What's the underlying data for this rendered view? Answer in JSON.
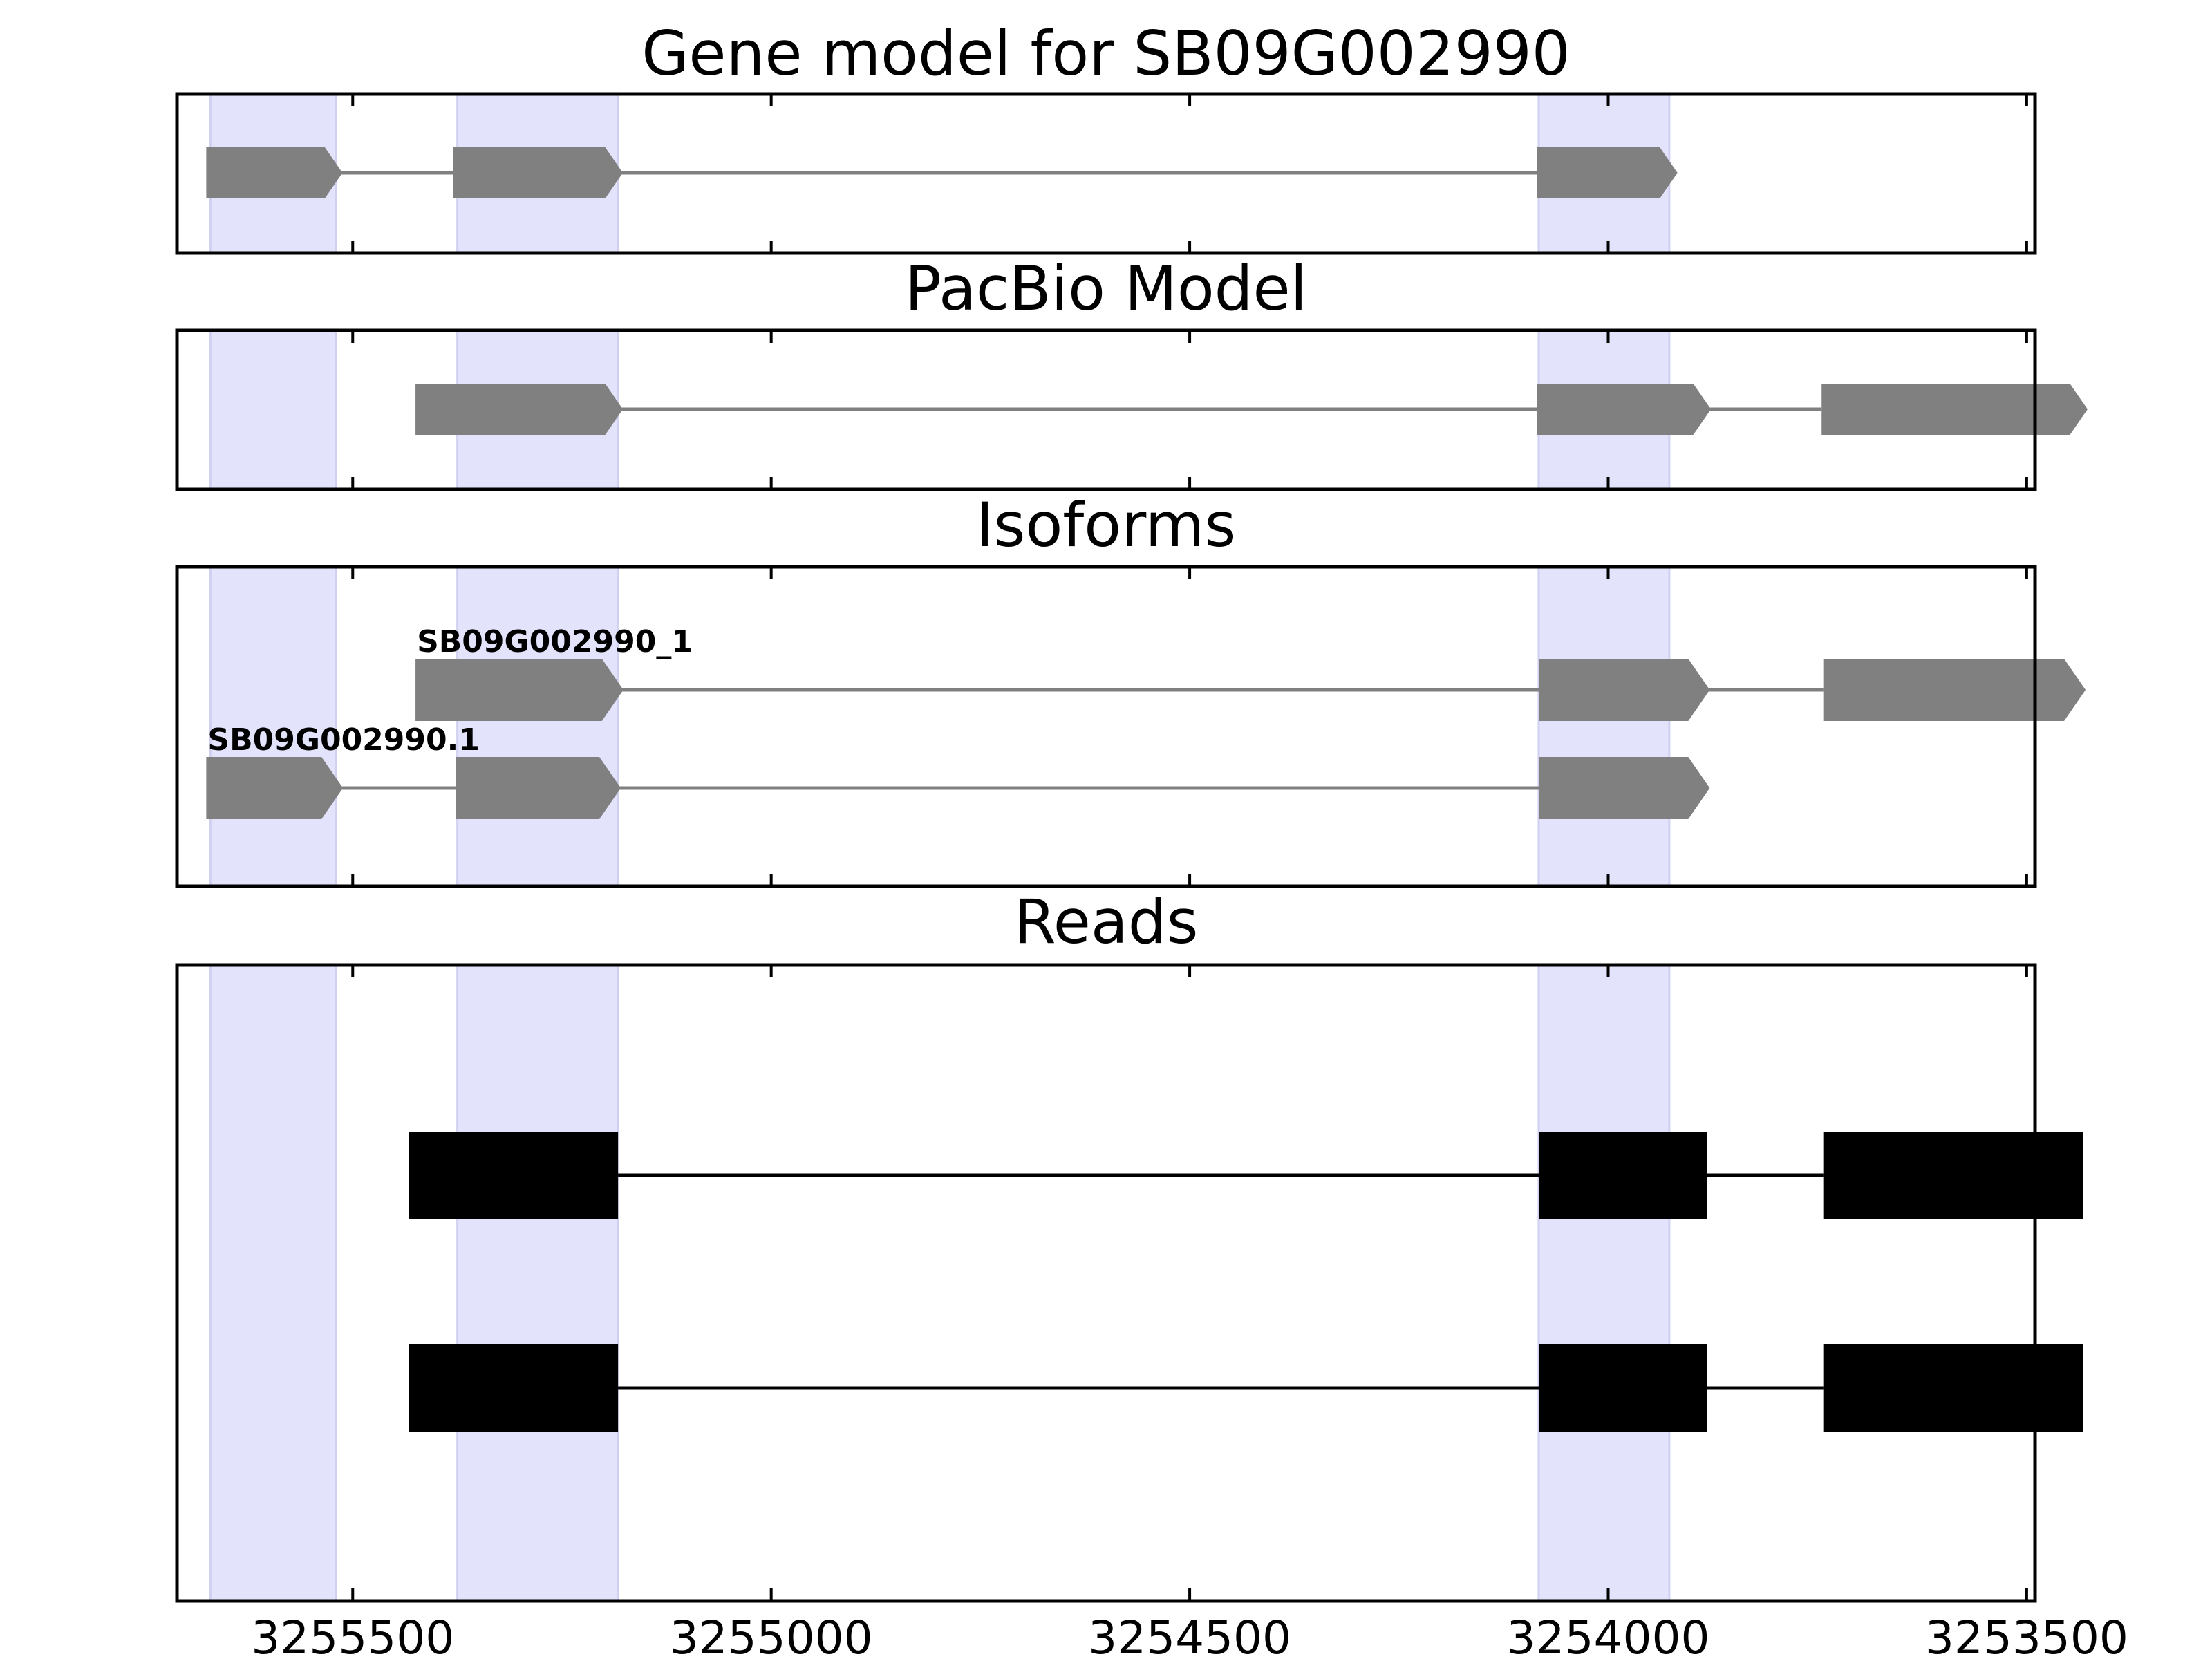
{
  "chart_data": {
    "type": "gene-structure",
    "x_axis": {
      "reversed": true,
      "range": [
        3255710,
        3253490
      ],
      "ticks": [
        3255500,
        3255000,
        3254500,
        3254000,
        3253500
      ],
      "tick_labels": [
        "3255500",
        "3255000",
        "3254500",
        "3254000",
        "3253500"
      ]
    },
    "highlight_bands": [
      [
        3255670,
        3255520
      ],
      [
        3255375,
        3255183
      ],
      [
        3254083,
        3253927
      ]
    ],
    "panels": [
      {
        "id": "gene-model",
        "title": "Gene model for SB09G002990",
        "tracks": [
          {
            "label": "",
            "exons": [
              [
                3255675,
                3255515
              ],
              [
                3255380,
                3255180
              ],
              [
                3254085,
                3253920
              ]
            ]
          }
        ]
      },
      {
        "id": "pacbio-model",
        "title": "PacBio Model",
        "tracks": [
          {
            "label": "",
            "exons": [
              [
                3255425,
                3255180
              ],
              [
                3254085,
                3253880
              ],
              [
                3253745,
                3253430
              ]
            ]
          }
        ]
      },
      {
        "id": "isoforms",
        "title": "Isoforms",
        "tracks": [
          {
            "label": "SB09G002990_1",
            "exons": [
              [
                3255425,
                3255180
              ],
              [
                3254083,
                3253882
              ],
              [
                3253743,
                3253433
              ]
            ]
          },
          {
            "label": "SB09G002990.1",
            "exons": [
              [
                3255675,
                3255515
              ],
              [
                3255377,
                3255183
              ],
              [
                3254083,
                3253882
              ]
            ]
          }
        ]
      },
      {
        "id": "reads",
        "title": "Reads",
        "tracks": [
          {
            "label": "",
            "exons": [
              [
                3255433,
                3255183
              ],
              [
                3254083,
                3253882
              ],
              [
                3253743,
                3253433
              ]
            ]
          },
          {
            "label": "",
            "exons": [
              [
                3255433,
                3255183
              ],
              [
                3254083,
                3253882
              ],
              [
                3253743,
                3253433
              ]
            ]
          }
        ]
      }
    ]
  }
}
